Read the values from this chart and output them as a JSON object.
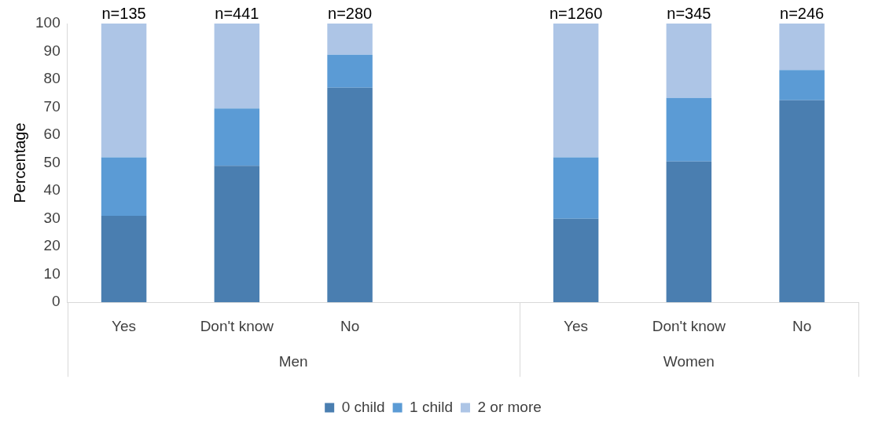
{
  "chart_data": {
    "type": "bar",
    "stacked": true,
    "ylabel": "Percentage",
    "categories": [
      "Yes",
      "Don't know",
      "No",
      null,
      "Yes",
      "Don't know",
      "No"
    ],
    "series": [
      {
        "name": "0 child",
        "color": "#4a7eb0",
        "values": [
          31,
          49,
          77,
          null,
          30,
          50.5,
          72.5
        ]
      },
      {
        "name": "1 child",
        "color": "#5b9bd5",
        "values": [
          21,
          20.5,
          11.8,
          null,
          22,
          22.8,
          10.8
        ]
      },
      {
        "name": "2 or more",
        "color": "#adc5e6",
        "values": [
          48,
          30.5,
          11.2,
          null,
          48,
          26.7,
          16.7
        ]
      }
    ],
    "annotations": [
      "n=135",
      "n=441",
      "n=280",
      "n=1260",
      "n=345",
      "n=246",
      "Men",
      "Women"
    ],
    "ylim": [
      0,
      100
    ],
    "yticks": [
      0,
      10,
      20,
      30,
      40,
      50,
      60,
      70,
      80,
      90,
      100
    ],
    "grid": false,
    "legend": "bottom"
  }
}
